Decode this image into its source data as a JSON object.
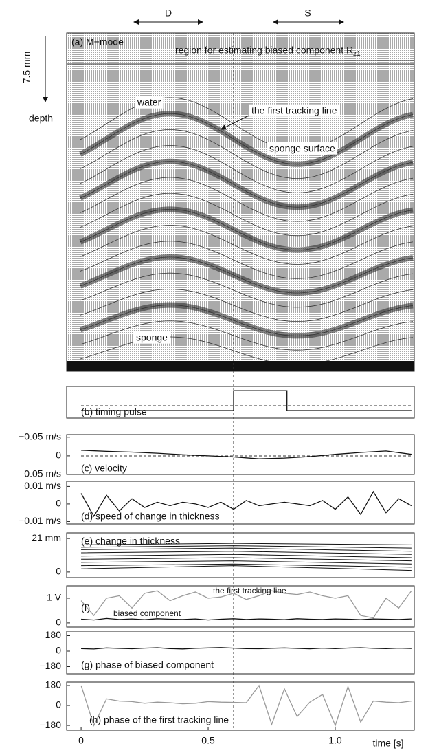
{
  "chart_data": [
    {
      "type": "image",
      "title": "(a) M−mode",
      "region_label": "region for estimating biased component R",
      "region_subscript": "z1",
      "depth_scale": "7.5 mm",
      "depth_label": "depth",
      "markers": [
        "D",
        "S"
      ],
      "annotations": [
        "water",
        "the first tracking line",
        "sponge surface",
        "sponge"
      ]
    },
    {
      "type": "line",
      "title": "(b) timing pulse",
      "x": [
        0,
        0.6,
        0.6,
        0.81,
        0.81,
        1.3
      ],
      "values": [
        0,
        0,
        1,
        1,
        0,
        0
      ],
      "ylim": [
        -0.38,
        1.21
      ]
    },
    {
      "type": "line",
      "title": "(c) velocity",
      "x": [
        0,
        0.1,
        0.2,
        0.3,
        0.4,
        0.5,
        0.6,
        0.7,
        0.8,
        0.9,
        1.0,
        1.1,
        1.2,
        1.3
      ],
      "values": [
        -0.015,
        -0.012,
        -0.01,
        -0.007,
        -0.003,
        0,
        0.003,
        0.008,
        0.006,
        0.002,
        -0.004,
        -0.009,
        -0.013,
        -0.004
      ],
      "ylim": [
        0.05,
        -0.057
      ],
      "yticks": [
        {
          "value": -0.05,
          "label": "−0.05 m/s"
        },
        0,
        {
          "value": 0.05,
          "label": "0.05 m/s"
        }
      ]
    },
    {
      "type": "line",
      "title": "(d) speed of change in thickness",
      "x": [
        0,
        0.05,
        0.1,
        0.15,
        0.2,
        0.25,
        0.3,
        0.35,
        0.4,
        0.45,
        0.5,
        0.55,
        0.6,
        0.65,
        0.7,
        0.75,
        0.8,
        0.85,
        0.9,
        0.95,
        1.0,
        1.05,
        1.1,
        1.15,
        1.2,
        1.25,
        1.3
      ],
      "values": [
        0.006,
        -0.007,
        0.005,
        -0.004,
        0.003,
        -0.002,
        0.001,
        -0.001,
        0.001,
        0,
        -0.002,
        0.001,
        -0.003,
        0.002,
        -0.001,
        0,
        0.001,
        0,
        -0.001,
        0.002,
        -0.003,
        0.004,
        -0.006,
        0.007,
        -0.005,
        0.003,
        -0.001
      ],
      "ylim": [
        -0.0114,
        0.0129
      ],
      "yticks": [
        {
          "value": 0.01,
          "label": "0.01 m/s"
        },
        0,
        {
          "value": -0.01,
          "label": "−0.01 m/s"
        }
      ]
    },
    {
      "type": "multiline",
      "title": "(e) change in thickness",
      "x": [
        0,
        0.6,
        1.3
      ],
      "series": [
        {
          "values": [
            2,
            4,
            1
          ]
        },
        {
          "values": [
            4,
            5,
            3
          ]
        },
        {
          "values": [
            6,
            7,
            5
          ]
        },
        {
          "values": [
            8,
            9,
            7
          ]
        },
        {
          "values": [
            10,
            11,
            9
          ]
        },
        {
          "values": [
            12,
            13,
            11
          ]
        },
        {
          "values": [
            14,
            15,
            13
          ]
        },
        {
          "values": [
            15.5,
            16.5,
            15
          ]
        },
        {
          "values": [
            17,
            18,
            17
          ]
        }
      ],
      "ylim": [
        -3.5,
        24.5
      ],
      "yticks": [
        {
          "value": 21,
          "label": "21 mm"
        },
        0
      ]
    },
    {
      "type": "multiline",
      "title": "(f)",
      "x": [
        0,
        0.05,
        0.1,
        0.15,
        0.2,
        0.25,
        0.3,
        0.35,
        0.4,
        0.45,
        0.5,
        0.55,
        0.6,
        0.65,
        0.7,
        0.75,
        0.8,
        0.85,
        0.9,
        0.95,
        1.0,
        1.05,
        1.1,
        1.15,
        1.2,
        1.25,
        1.3
      ],
      "series": [
        {
          "name": "the first tracking line",
          "color": "#999999",
          "values": [
            0.9,
            0.3,
            1.0,
            1.1,
            0.6,
            1.2,
            1.3,
            0.9,
            1.1,
            1.25,
            1.0,
            1.05,
            1.2,
            0.95,
            1.1,
            1.3,
            1.2,
            1.15,
            1.25,
            1.1,
            1.0,
            1.1,
            0.3,
            0.2,
            1.0,
            0.6,
            1.3
          ]
        },
        {
          "name": "biased component",
          "color": "#111111",
          "values": [
            0.15,
            0.12,
            0.18,
            0.14,
            0.16,
            0.13,
            0.17,
            0.15,
            0.14,
            0.16,
            0.12,
            0.15,
            0.17,
            0.14,
            0.16,
            0.15,
            0.13,
            0.17,
            0.15,
            0.14,
            0.16,
            0.15,
            0.13,
            0.16,
            0.15,
            0.14,
            0.16
          ]
        }
      ],
      "ylim": [
        -0.17,
        1.5
      ],
      "yticks": [
        {
          "value": 1,
          "label": "1 V"
        },
        0
      ]
    },
    {
      "type": "line",
      "title": "(g) phase of biased component",
      "x": [
        0,
        0.05,
        0.1,
        0.15,
        0.2,
        0.25,
        0.3,
        0.35,
        0.4,
        0.45,
        0.5,
        0.55,
        0.6,
        0.65,
        0.7,
        0.75,
        0.8,
        0.85,
        0.9,
        0.95,
        1.0,
        1.05,
        1.1,
        1.15,
        1.2,
        1.25,
        1.3
      ],
      "values": [
        30,
        25,
        38,
        32,
        28,
        35,
        40,
        30,
        26,
        33,
        38,
        42,
        35,
        30,
        28,
        34,
        38,
        32,
        27,
        35,
        30,
        36,
        40,
        33,
        29,
        35,
        31
      ],
      "ylim": [
        -264,
        232
      ],
      "yticks": [
        180,
        0,
        {
          "value": -180,
          "label": "−180"
        }
      ]
    },
    {
      "type": "line",
      "title": "(h) phase of the first tracking line",
      "color": "#999999",
      "x": [
        0,
        0.05,
        0.1,
        0.15,
        0.2,
        0.25,
        0.3,
        0.35,
        0.4,
        0.45,
        0.5,
        0.55,
        0.6,
        0.65,
        0.7,
        0.75,
        0.8,
        0.85,
        0.9,
        0.95,
        1.0,
        1.05,
        1.1,
        1.15,
        1.2,
        1.25,
        1.3
      ],
      "values": [
        180,
        -180,
        60,
        40,
        35,
        20,
        30,
        25,
        15,
        20,
        35,
        30,
        28,
        25,
        180,
        -170,
        150,
        -100,
        30,
        100,
        -180,
        170,
        -150,
        40,
        30,
        25,
        40
      ],
      "ylim": [
        -223,
        211
      ],
      "yticks": [
        180,
        0,
        {
          "value": -180,
          "label": "−180"
        }
      ],
      "xlim": [
        -0.057,
        1.311
      ],
      "xticks": [
        0,
        0.5,
        {
          "value": 1,
          "label": "1.0"
        }
      ],
      "xlabel": "time [s]"
    }
  ]
}
